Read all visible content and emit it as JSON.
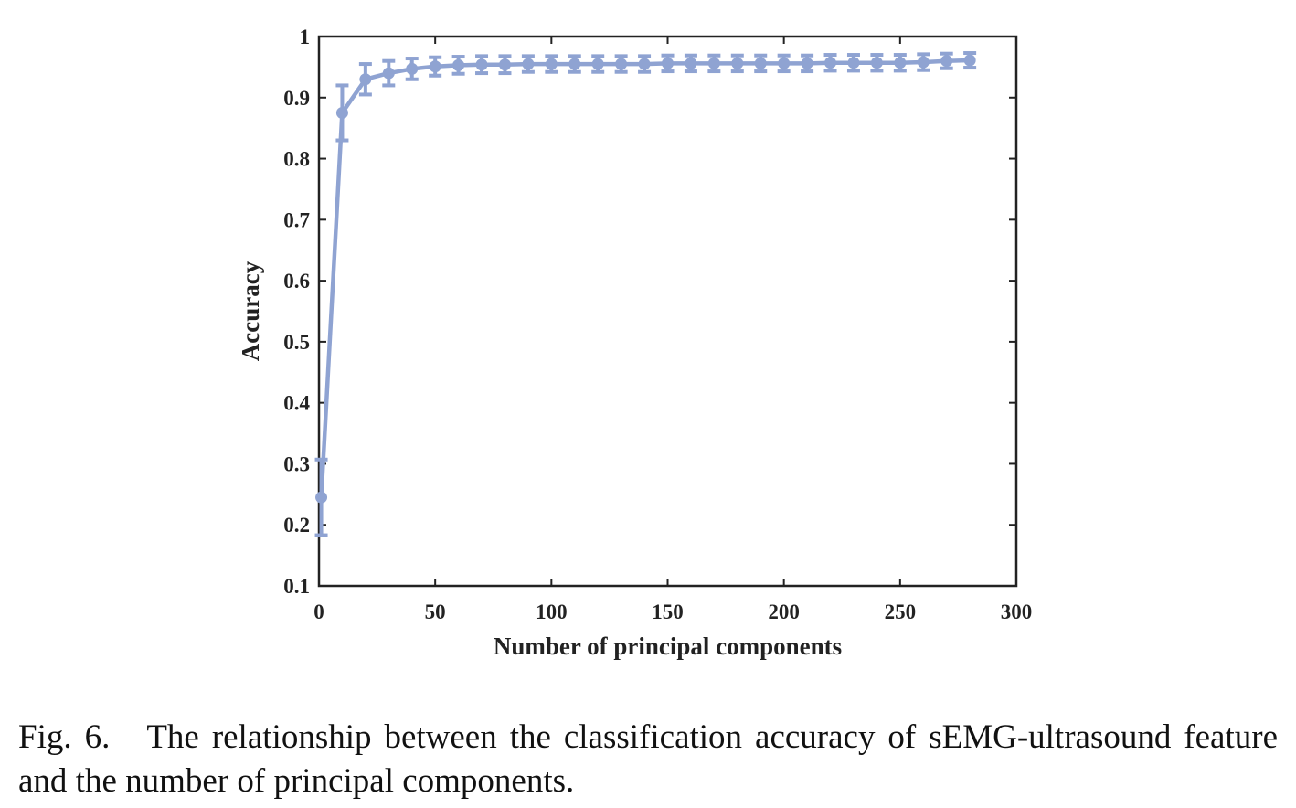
{
  "chart_data": {
    "type": "line",
    "xlabel": "Number of principal components",
    "ylabel": "Accuracy",
    "xlim": [
      0,
      300
    ],
    "ylim": [
      0.1,
      1
    ],
    "xticks": [
      "0",
      "50",
      "100",
      "150",
      "200",
      "250",
      "300"
    ],
    "yticks": [
      "0.1",
      "0.2",
      "0.3",
      "0.4",
      "0.5",
      "0.6",
      "0.7",
      "0.8",
      "0.9",
      "1"
    ],
    "grid": false,
    "legend": false,
    "color": "#8fa3d2",
    "series": [
      {
        "x": [
          1,
          10,
          20,
          30,
          40,
          50,
          60,
          70,
          80,
          90,
          100,
          110,
          120,
          130,
          140,
          150,
          160,
          170,
          180,
          190,
          200,
          210,
          220,
          230,
          240,
          250,
          260,
          270,
          280
        ],
        "y": [
          0.245,
          0.875,
          0.93,
          0.94,
          0.947,
          0.951,
          0.953,
          0.954,
          0.954,
          0.955,
          0.955,
          0.955,
          0.955,
          0.955,
          0.955,
          0.956,
          0.956,
          0.956,
          0.956,
          0.956,
          0.956,
          0.956,
          0.957,
          0.957,
          0.957,
          0.957,
          0.958,
          0.96,
          0.961
        ],
        "error": [
          0.062,
          0.045,
          0.025,
          0.02,
          0.017,
          0.015,
          0.014,
          0.014,
          0.014,
          0.013,
          0.013,
          0.013,
          0.013,
          0.013,
          0.013,
          0.013,
          0.013,
          0.013,
          0.013,
          0.013,
          0.013,
          0.013,
          0.013,
          0.013,
          0.013,
          0.013,
          0.013,
          0.012,
          0.012
        ]
      }
    ]
  },
  "caption": {
    "label": "Fig. 6.",
    "text": "The relationship between the classification accuracy of sEMG-ultrasound feature and the number of principal components."
  }
}
